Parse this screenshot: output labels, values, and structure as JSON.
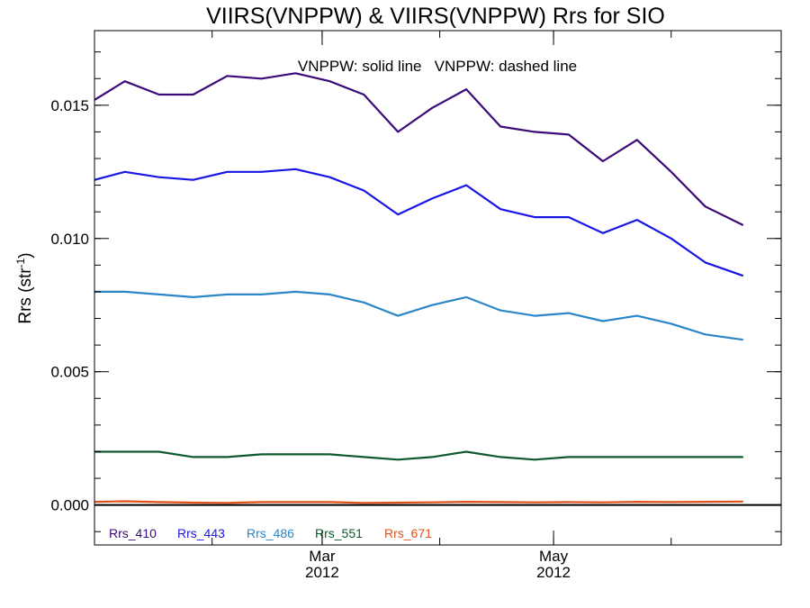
{
  "chart_data": {
    "type": "line",
    "title": "VIIRS(VNPPW) & VIIRS(VNPPW)  Rrs for SIO",
    "annotation": "VNPPW: solid line   VNPPW: dashed line",
    "ylabel": "Rrs (str",
    "ylabel_sup": "-1",
    "ylabel_close": ")",
    "ylim": [
      -0.0015,
      0.0178
    ],
    "yticks": [
      {
        "value": 0.0,
        "label": "0.000"
      },
      {
        "value": 0.005,
        "label": "0.005"
      },
      {
        "value": 0.01,
        "label": "0.010"
      },
      {
        "value": 0.015,
        "label": "0.015"
      }
    ],
    "y_minor_step": 0.001,
    "xlim": [
      "2012-01-01",
      "2012-06-30"
    ],
    "xticks": [
      {
        "date": "2012-03-01",
        "label": "Mar",
        "sublabel": "2012"
      },
      {
        "date": "2012-05-01",
        "label": "May",
        "sublabel": "2012"
      }
    ],
    "x_minor_ticks": [
      "2012-01-01",
      "2012-02-01",
      "2012-03-01",
      "2012-04-01",
      "2012-05-01",
      "2012-06-01"
    ],
    "x": [
      "2012-01-01",
      "2012-01-09",
      "2012-01-18",
      "2012-01-27",
      "2012-02-05",
      "2012-02-14",
      "2012-02-23",
      "2012-03-03",
      "2012-03-12",
      "2012-03-21",
      "2012-03-30",
      "2012-04-08",
      "2012-04-17",
      "2012-04-26",
      "2012-05-05",
      "2012-05-14",
      "2012-05-23",
      "2012-06-01",
      "2012-06-10",
      "2012-06-20"
    ],
    "series": [
      {
        "name": "Rrs_410",
        "color": "#3a0a78",
        "values": [
          0.0152,
          0.0159,
          0.0154,
          0.0154,
          0.0161,
          0.016,
          0.0162,
          0.0159,
          0.0154,
          0.014,
          0.0149,
          0.0156,
          0.0142,
          0.014,
          0.0139,
          0.0129,
          0.0137,
          0.0125,
          0.0112,
          0.0105
        ]
      },
      {
        "name": "Rrs_443",
        "color": "#1a14e6",
        "values": [
          0.0122,
          0.0125,
          0.0123,
          0.0122,
          0.0125,
          0.0125,
          0.0126,
          0.0123,
          0.0118,
          0.0109,
          0.0115,
          0.012,
          0.0111,
          0.0108,
          0.0108,
          0.0102,
          0.0107,
          0.01,
          0.0091,
          0.0086
        ]
      },
      {
        "name": "Rrs_486",
        "color": "#2b86c8",
        "values": [
          0.008,
          0.008,
          0.0079,
          0.0078,
          0.0079,
          0.0079,
          0.008,
          0.0079,
          0.0076,
          0.0071,
          0.0075,
          0.0078,
          0.0073,
          0.0071,
          0.0072,
          0.0069,
          0.0071,
          0.0068,
          0.0064,
          0.0062
        ]
      },
      {
        "name": "Rrs_551",
        "color": "#0e5a2e",
        "values": [
          0.002,
          0.002,
          0.002,
          0.0018,
          0.0018,
          0.0019,
          0.0019,
          0.0019,
          0.0018,
          0.0017,
          0.0018,
          0.002,
          0.0018,
          0.0017,
          0.0018,
          0.0018,
          0.0018,
          0.0018,
          0.0018,
          0.0018
        ]
      },
      {
        "name": "Rrs_671",
        "color": "#e0521a",
        "values": [
          0.00012,
          0.00014,
          0.00011,
          9e-05,
          8e-05,
          0.00011,
          0.00011,
          0.00011,
          8e-05,
          9e-05,
          0.0001,
          0.00012,
          0.00011,
          0.0001,
          0.00011,
          0.0001,
          0.00012,
          0.00011,
          0.00012,
          0.00013
        ]
      }
    ],
    "zero_line_color": "#000000",
    "grid": false,
    "legend_placement": "bottom-left, inside plot"
  }
}
